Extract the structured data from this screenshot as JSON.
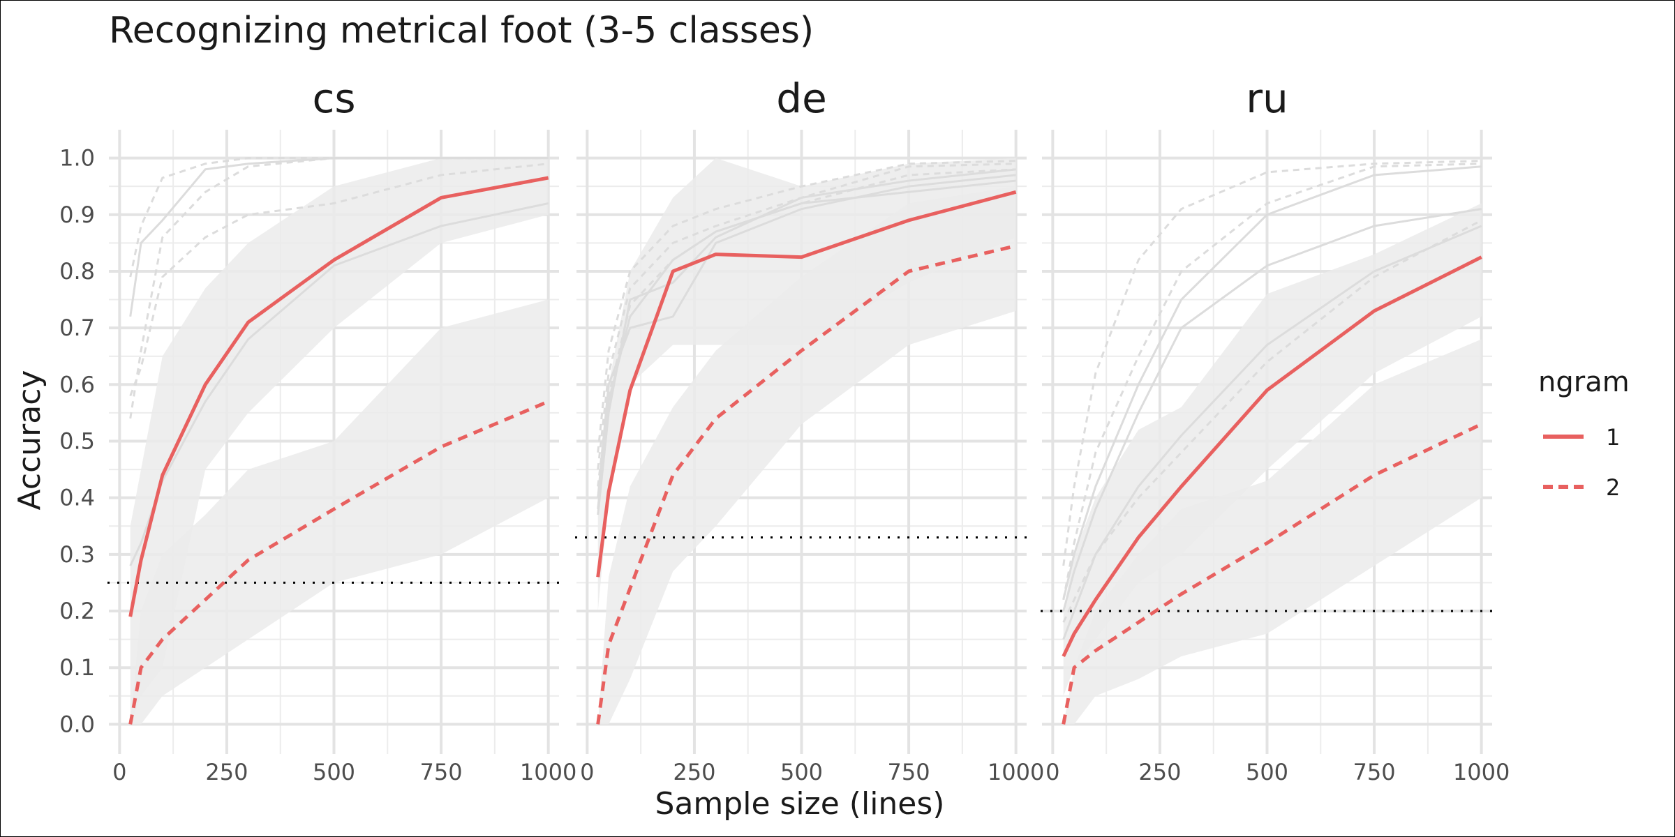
{
  "chart_data": {
    "type": "line",
    "title": "Recognizing metrical foot (3-5 classes)",
    "xlabel": "Sample size (lines)",
    "ylabel": "Accuracy",
    "xlim": [
      0,
      1000
    ],
    "ylim": [
      0,
      1
    ],
    "x_ticks": [
      0,
      250,
      500,
      750,
      1000
    ],
    "y_ticks": [
      0.0,
      0.1,
      0.2,
      0.3,
      0.4,
      0.5,
      0.6,
      0.7,
      0.8,
      0.9,
      1.0
    ],
    "x_tick_labels": [
      "0",
      "250",
      "500",
      "750",
      "1000"
    ],
    "y_tick_labels": [
      "0.0",
      "0.1",
      "0.2",
      "0.3",
      "0.4",
      "0.5",
      "0.6",
      "0.7",
      "0.8",
      "0.9",
      "1.0"
    ],
    "grid": true,
    "legend": {
      "title": "ngram",
      "position": "right",
      "entries": [
        {
          "label": "1",
          "linetype": "solid"
        },
        {
          "label": "2",
          "linetype": "dashed"
        }
      ]
    },
    "colors": {
      "highlight": "#E8605F",
      "background_lines": "#DCDCDC",
      "ribbon": "#EBEBEB",
      "baseline": "#000000"
    },
    "x": [
      25,
      50,
      100,
      200,
      300,
      500,
      750,
      1000
    ],
    "panels": [
      {
        "facet": "cs",
        "baseline": 0.25,
        "series": [
          {
            "ngram": "1",
            "values": [
              0.19,
              0.29,
              0.44,
              0.6,
              0.71,
              0.82,
              0.93,
              0.965
            ]
          },
          {
            "ngram": "2",
            "values": [
              0.0,
              0.1,
              0.15,
              0.22,
              0.29,
              0.38,
              0.49,
              0.57
            ]
          }
        ],
        "background_series": [
          {
            "ngram": "1",
            "values": [
              0.72,
              0.85,
              0.89,
              0.98,
              0.99,
              1.0,
              1.0,
              1.0
            ]
          },
          {
            "ngram": "1",
            "values": [
              0.28,
              0.32,
              0.43,
              0.57,
              0.68,
              0.81,
              0.88,
              0.92
            ]
          },
          {
            "ngram": "2",
            "values": [
              0.79,
              0.88,
              0.965,
              0.99,
              1.0,
              1.0,
              1.0,
              1.0
            ]
          },
          {
            "ngram": "2",
            "values": [
              0.54,
              0.66,
              0.86,
              0.94,
              0.985,
              1.0,
              1.0,
              1.0
            ]
          },
          {
            "ngram": "2",
            "values": [
              0.58,
              0.63,
              0.79,
              0.86,
              0.9,
              0.92,
              0.97,
              0.99
            ]
          }
        ],
        "bands": [
          {
            "lower": [
              0.0,
              0.05,
              0.1,
              0.45,
              0.55,
              0.7,
              0.85,
              0.9
            ],
            "upper": [
              0.35,
              0.45,
              0.65,
              0.77,
              0.85,
              0.95,
              1.0,
              1.0
            ]
          },
          {
            "lower": [
              0.0,
              0.0,
              0.05,
              0.1,
              0.15,
              0.25,
              0.3,
              0.4
            ],
            "upper": [
              0.0,
              0.2,
              0.3,
              0.37,
              0.45,
              0.5,
              0.7,
              0.75
            ]
          }
        ]
      },
      {
        "facet": "de",
        "baseline": 0.33,
        "series": [
          {
            "ngram": "1",
            "values": [
              0.26,
              0.41,
              0.59,
              0.8,
              0.83,
              0.825,
              0.89,
              0.94
            ]
          },
          {
            "ngram": "2",
            "values": [
              0.0,
              0.14,
              0.24,
              0.44,
              0.54,
              0.66,
              0.8,
              0.845
            ]
          }
        ],
        "background_series": [
          {
            "ngram": "1",
            "values": [
              0.37,
              0.55,
              0.75,
              0.78,
              0.86,
              0.93,
              0.96,
              0.98
            ]
          },
          {
            "ngram": "1",
            "values": [
              0.4,
              0.6,
              0.7,
              0.72,
              0.85,
              0.91,
              0.95,
              0.97
            ]
          },
          {
            "ngram": "1",
            "values": [
              0.38,
              0.57,
              0.72,
              0.82,
              0.87,
              0.92,
              0.94,
              0.96
            ]
          },
          {
            "ngram": "2",
            "values": [
              0.48,
              0.66,
              0.8,
              0.88,
              0.91,
              0.95,
              0.99,
              0.995
            ]
          },
          {
            "ngram": "2",
            "values": [
              0.45,
              0.62,
              0.77,
              0.85,
              0.88,
              0.93,
              0.985,
              0.99
            ]
          },
          {
            "ngram": "2",
            "values": [
              0.42,
              0.58,
              0.74,
              0.82,
              0.87,
              0.92,
              0.97,
              0.98
            ]
          }
        ],
        "bands": [
          {
            "lower": [
              0.2,
              0.4,
              0.6,
              0.67,
              0.67,
              0.67,
              0.78,
              0.86
            ],
            "upper": [
              0.4,
              0.6,
              0.8,
              0.93,
              1.0,
              0.95,
              0.99,
              1.0
            ]
          },
          {
            "lower": [
              0.0,
              0.0,
              0.08,
              0.27,
              0.35,
              0.53,
              0.67,
              0.73
            ],
            "upper": [
              0.0,
              0.26,
              0.42,
              0.56,
              0.66,
              0.79,
              0.92,
              0.95
            ]
          }
        ]
      },
      {
        "facet": "ru",
        "baseline": 0.2,
        "series": [
          {
            "ngram": "1",
            "values": [
              0.12,
              0.16,
              0.22,
              0.33,
              0.42,
              0.59,
              0.73,
              0.825
            ]
          },
          {
            "ngram": "2",
            "values": [
              0.0,
              0.1,
              0.13,
              0.18,
              0.23,
              0.32,
              0.44,
              0.53
            ]
          }
        ],
        "background_series": [
          {
            "ngram": "1",
            "values": [
              0.22,
              0.3,
              0.42,
              0.6,
              0.75,
              0.9,
              0.97,
              0.985
            ]
          },
          {
            "ngram": "1",
            "values": [
              0.2,
              0.27,
              0.38,
              0.55,
              0.7,
              0.81,
              0.88,
              0.91
            ]
          },
          {
            "ngram": "1",
            "values": [
              0.15,
              0.2,
              0.3,
              0.42,
              0.51,
              0.67,
              0.8,
              0.88
            ]
          },
          {
            "ngram": "2",
            "values": [
              0.28,
              0.42,
              0.62,
              0.82,
              0.91,
              0.975,
              0.99,
              0.995
            ]
          },
          {
            "ngram": "2",
            "values": [
              0.22,
              0.32,
              0.48,
              0.65,
              0.8,
              0.92,
              0.985,
              0.99
            ]
          },
          {
            "ngram": "2",
            "values": [
              0.18,
              0.22,
              0.3,
              0.4,
              0.48,
              0.64,
              0.79,
              0.89
            ]
          }
        ],
        "bands": [
          {
            "lower": [
              0.05,
              0.1,
              0.15,
              0.25,
              0.3,
              0.45,
              0.62,
              0.72
            ],
            "upper": [
              0.2,
              0.3,
              0.4,
              0.52,
              0.56,
              0.76,
              0.83,
              0.92
            ]
          },
          {
            "lower": [
              0.0,
              0.0,
              0.05,
              0.08,
              0.12,
              0.16,
              0.28,
              0.4
            ],
            "upper": [
              0.0,
              0.1,
              0.2,
              0.3,
              0.38,
              0.43,
              0.6,
              0.68
            ]
          }
        ]
      }
    ]
  }
}
